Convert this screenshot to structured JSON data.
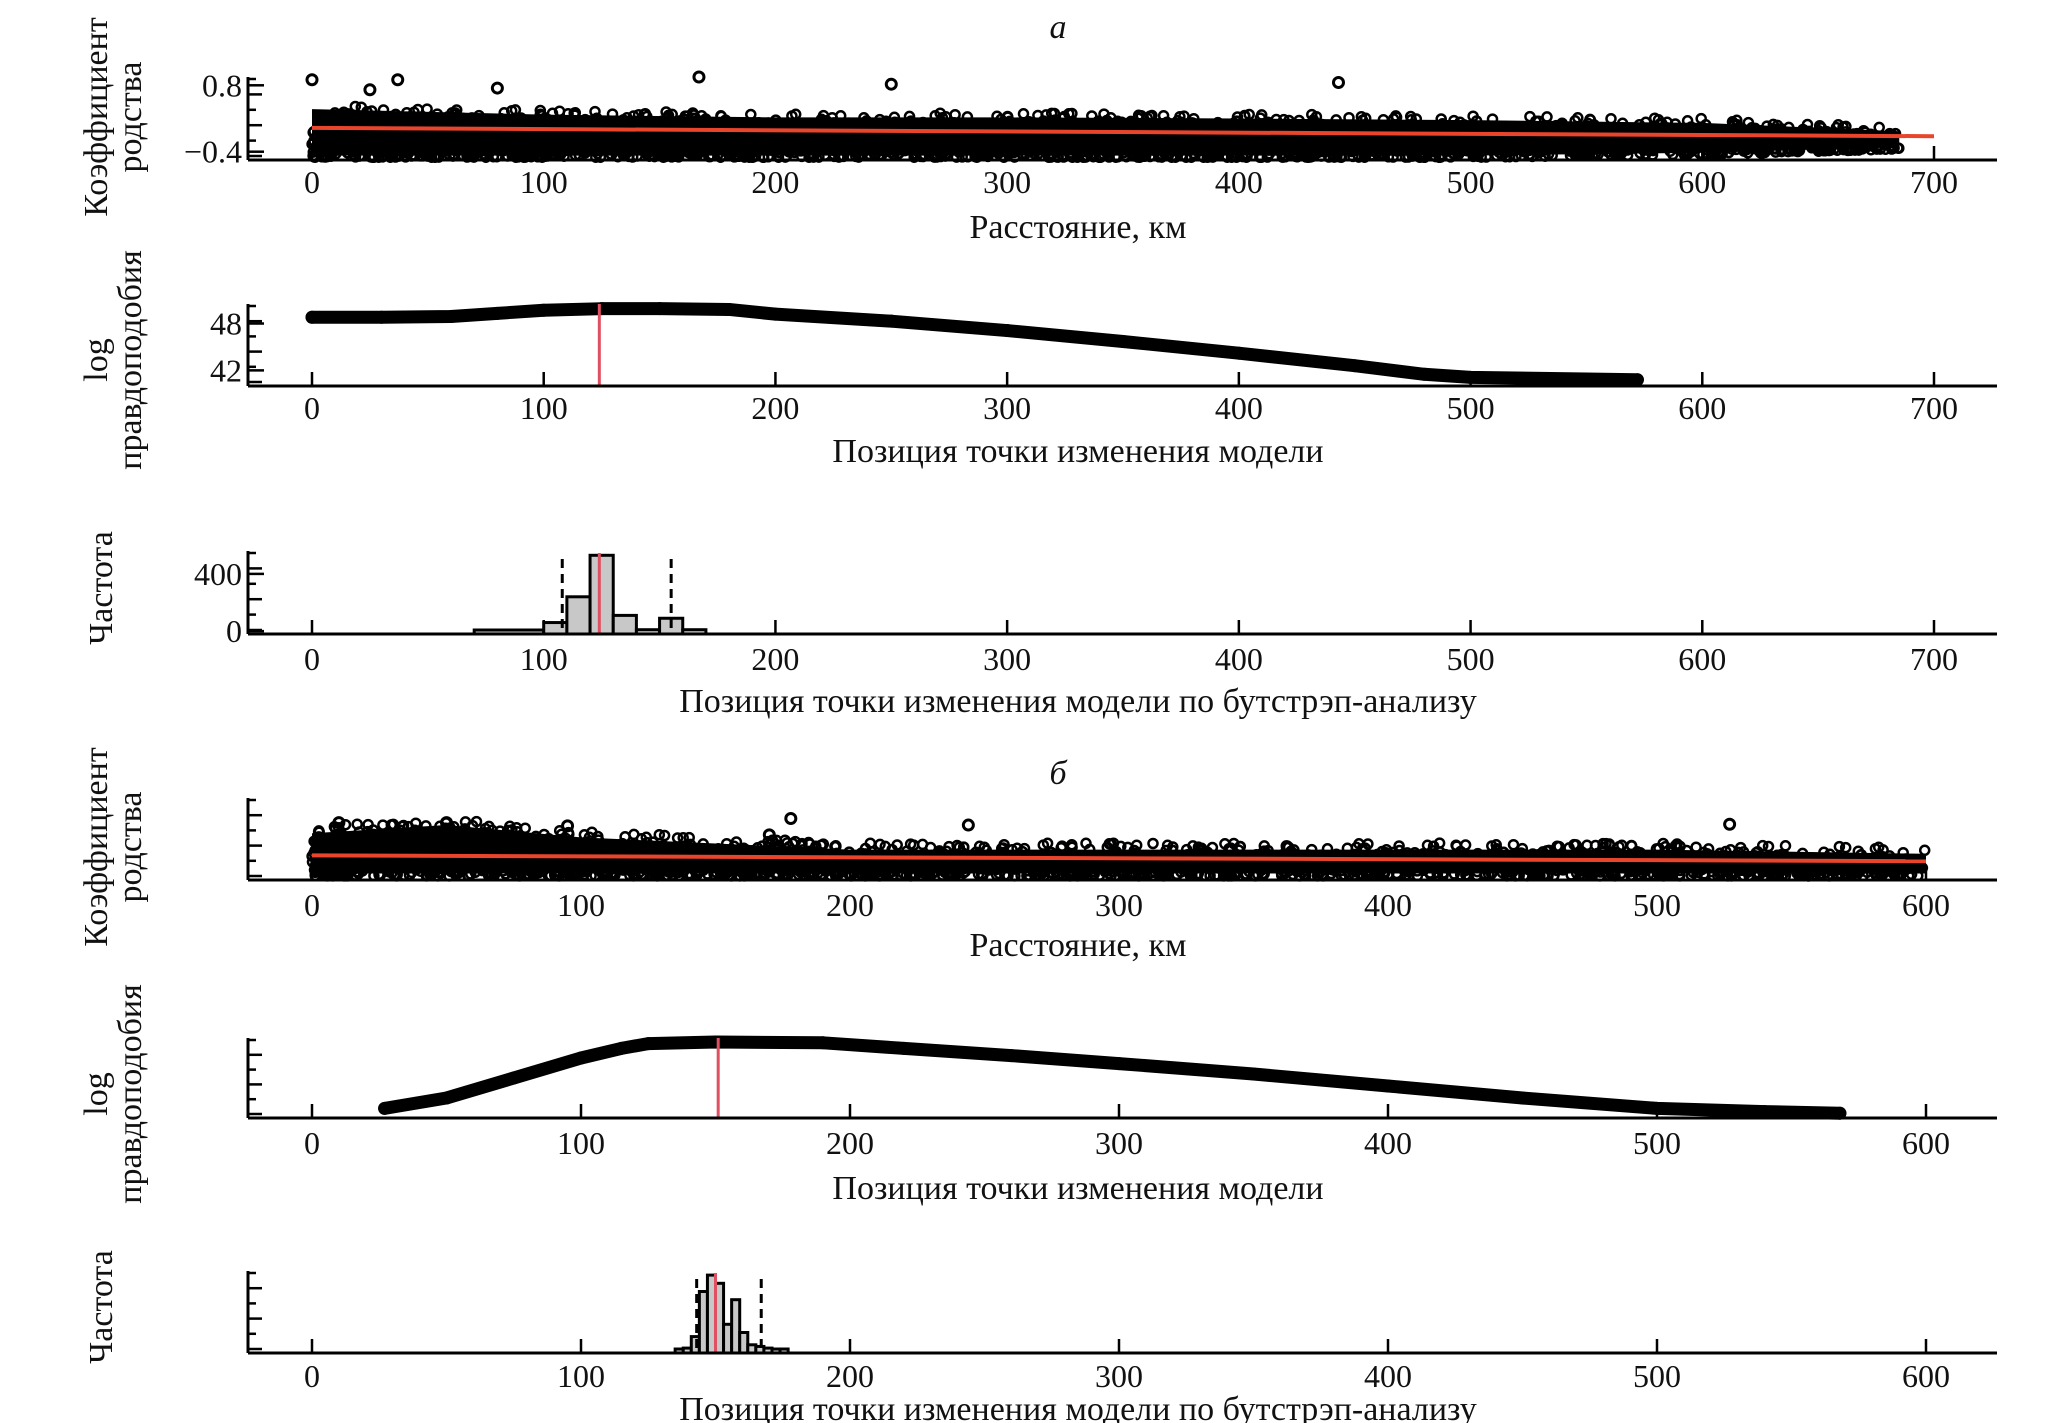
{
  "panel_titles": [
    "а",
    "б"
  ],
  "colors": {
    "regression": "#e8452c",
    "changepoint": "#e05062",
    "bar_fill": "#c8c8c8",
    "points": "#000000"
  },
  "chart_data": [
    {
      "id": "a1",
      "type": "scatter",
      "panel": "а",
      "xlabel": "Расстояние, км",
      "ylabel": [
        "Коэффициент",
        "родства"
      ],
      "xlim": [
        -15,
        730
      ],
      "ylim": [
        -0.55,
        0.95
      ],
      "xticks": [
        0,
        100,
        200,
        300,
        400,
        500,
        600,
        700
      ],
      "yticks": [
        0.8,
        -0.4
      ],
      "ytick_labels": [
        "0.8",
        "−0.4"
      ],
      "point_band": {
        "x": [
          0,
          100,
          200,
          300,
          400,
          500,
          600,
          685
        ],
        "lower": [
          -0.5,
          -0.5,
          -0.5,
          -0.5,
          -0.5,
          -0.5,
          -0.45,
          -0.35
        ],
        "upper": [
          0.45,
          0.35,
          0.3,
          0.3,
          0.28,
          0.25,
          0.2,
          0.05
        ]
      },
      "outliers": [
        [
          167,
          0.95
        ],
        [
          250,
          0.82
        ],
        [
          443,
          0.85
        ],
        [
          80,
          0.75
        ],
        [
          37,
          0.9
        ],
        [
          0,
          0.9
        ],
        [
          25,
          0.72
        ]
      ],
      "regression": {
        "x": [
          0,
          700
        ],
        "y": [
          0.03,
          -0.12
        ]
      }
    },
    {
      "id": "a2",
      "type": "line",
      "panel": "а",
      "xlabel": "Позиция точки изменения модели",
      "ylabel": [
        "log",
        "правдоподобия"
      ],
      "xlim": [
        -15,
        730
      ],
      "ylim": [
        40,
        50.5
      ],
      "xticks": [
        0,
        100,
        200,
        300,
        400,
        500,
        600,
        700
      ],
      "yticks": [
        48,
        42
      ],
      "ytick_labels": [
        "48",
        "42"
      ],
      "x": [
        0,
        30,
        60,
        80,
        100,
        125,
        150,
        180,
        200,
        250,
        300,
        350,
        400,
        450,
        480,
        500,
        550,
        572
      ],
      "y": [
        48.8,
        48.8,
        48.9,
        49.3,
        49.7,
        49.9,
        49.9,
        49.8,
        49.2,
        48.3,
        47.1,
        45.7,
        44.2,
        42.6,
        41.5,
        41.1,
        40.9,
        40.8
      ],
      "changepoint": 124
    },
    {
      "id": "a3",
      "type": "bar",
      "panel": "а",
      "xlabel": "Позиция точки изменения модели по бутстрэп-анализу",
      "ylabel": [
        "Частота"
      ],
      "xlim": [
        -15,
        730
      ],
      "ylim": [
        -20,
        560
      ],
      "xticks": [
        0,
        100,
        200,
        300,
        400,
        500,
        600,
        700
      ],
      "yticks": [
        400,
        0
      ],
      "ytick_labels": [
        "400",
        "0"
      ],
      "bin_edges": [
        70,
        100,
        110,
        120,
        130,
        140,
        150,
        160,
        170
      ],
      "values": [
        5,
        60,
        240,
        530,
        110,
        10,
        90,
        10
      ],
      "ci": [
        108,
        155
      ],
      "changepoint": 124
    },
    {
      "id": "b1",
      "type": "scatter",
      "panel": "б",
      "xlabel": "Расстояние, км",
      "ylabel": [
        "Коэффициент",
        "родства"
      ],
      "xlim": [
        -15,
        625
      ],
      "ylim": [
        0,
        1
      ],
      "xticks": [
        0,
        100,
        200,
        300,
        400,
        500,
        600
      ],
      "point_band": {
        "x": [
          0,
          50,
          100,
          200,
          300,
          400,
          500,
          600
        ],
        "lower": [
          0.05,
          0.05,
          0.05,
          0.05,
          0.05,
          0.05,
          0.05,
          0.05
        ],
        "upper": [
          0.65,
          0.75,
          0.6,
          0.45,
          0.45,
          0.45,
          0.45,
          0.4
        ]
      },
      "outliers": [
        [
          178,
          0.75
        ],
        [
          244,
          0.67
        ],
        [
          527,
          0.68
        ],
        [
          10,
          0.7
        ],
        [
          50,
          0.7
        ],
        [
          95,
          0.66
        ],
        [
          170,
          0.55
        ]
      ],
      "regression": {
        "x": [
          0,
          600
        ],
        "y": [
          0.3,
          0.23
        ]
      }
    },
    {
      "id": "b2",
      "type": "line",
      "panel": "б",
      "xlabel": "Позиция точки изменения модели",
      "ylabel": [
        "log",
        "правдоподобия"
      ],
      "xlim": [
        -15,
        625
      ],
      "ylim": [
        0,
        1
      ],
      "xticks": [
        0,
        100,
        200,
        300,
        400,
        500,
        600
      ],
      "x": [
        27,
        50,
        75,
        100,
        115,
        125,
        150,
        190,
        220,
        260,
        300,
        350,
        400,
        450,
        500,
        540,
        568
      ],
      "y": [
        0.12,
        0.25,
        0.5,
        0.75,
        0.87,
        0.93,
        0.95,
        0.94,
        0.87,
        0.78,
        0.68,
        0.55,
        0.4,
        0.25,
        0.12,
        0.08,
        0.06
      ],
      "changepoint": 151
    },
    {
      "id": "b3",
      "type": "bar",
      "panel": "б",
      "xlabel": "Позиция точки изменения модели по бутстрэп-анализу",
      "ylabel": [
        "Частота"
      ],
      "xlim": [
        -15,
        625
      ],
      "ylim": [
        0,
        1
      ],
      "xticks": [
        0,
        100,
        200,
        300,
        400,
        500,
        600
      ],
      "bin_edges": [
        135,
        138,
        141,
        144,
        147,
        150,
        153,
        156,
        159,
        162,
        165,
        168,
        171,
        174,
        177
      ],
      "values": [
        0.03,
        0.06,
        0.2,
        0.75,
        0.95,
        0.85,
        0.35,
        0.65,
        0.25,
        0.1,
        0.08,
        0.06,
        0.04,
        0.02
      ],
      "ci": [
        143,
        167
      ],
      "changepoint": 150
    }
  ]
}
